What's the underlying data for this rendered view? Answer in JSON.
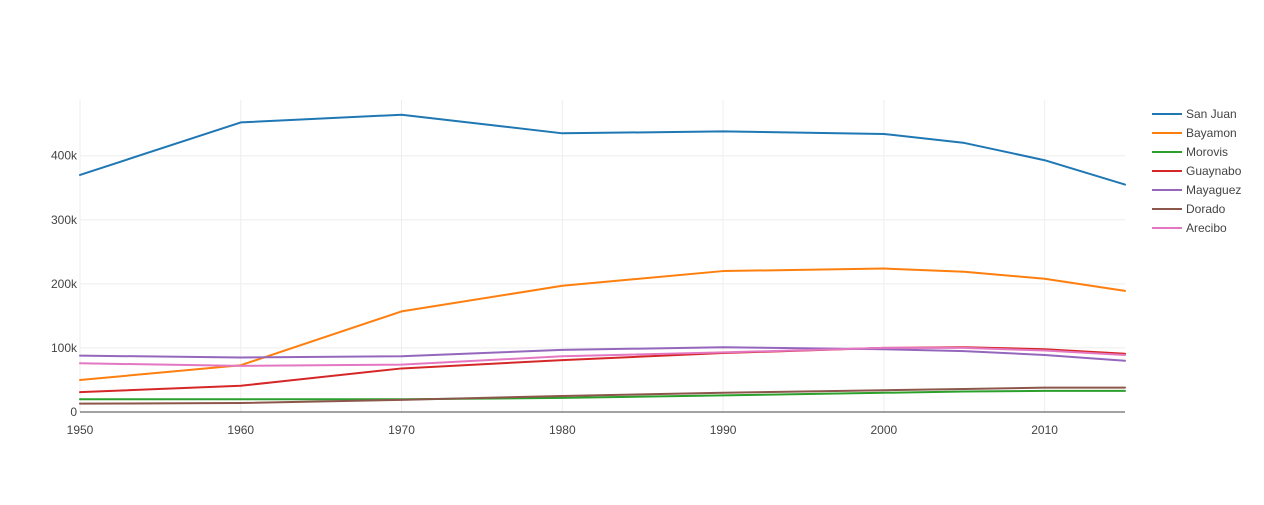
{
  "chart_data": {
    "type": "line",
    "x": [
      1950,
      1960,
      1970,
      1980,
      1990,
      2000,
      2005,
      2010,
      2015
    ],
    "xticks": [
      1950,
      1960,
      1970,
      1980,
      1990,
      2000,
      2010
    ],
    "yticks": [
      {
        "value": 0,
        "label": "0"
      },
      {
        "value": 100000,
        "label": "100k"
      },
      {
        "value": 200000,
        "label": "200k"
      },
      {
        "value": 300000,
        "label": "300k"
      },
      {
        "value": 400000,
        "label": "400k"
      }
    ],
    "xlim": [
      1950,
      2015
    ],
    "ylim": [
      0,
      487000
    ],
    "grid": true,
    "legend_position": "top-right",
    "series": [
      {
        "name": "San Juan",
        "color": "#1f77b4",
        "values": [
          370000,
          452000,
          464000,
          435000,
          438000,
          434000,
          420000,
          393000,
          355000
        ]
      },
      {
        "name": "Bayamon",
        "color": "#ff7f0e",
        "values": [
          50000,
          73000,
          157000,
          197000,
          220000,
          224000,
          219000,
          208000,
          189000
        ]
      },
      {
        "name": "Morovis",
        "color": "#2ca02c",
        "values": [
          20000,
          20000,
          20000,
          22000,
          26000,
          30000,
          32000,
          33000,
          33000
        ]
      },
      {
        "name": "Guaynabo",
        "color": "#d62728",
        "values": [
          31000,
          41000,
          68000,
          81000,
          92000,
          100000,
          101000,
          98000,
          91000
        ]
      },
      {
        "name": "Mayaguez",
        "color": "#9467bd",
        "values": [
          88000,
          85000,
          87000,
          97000,
          101000,
          98000,
          95000,
          89000,
          80000
        ]
      },
      {
        "name": "Dorado",
        "color": "#8c564b",
        "values": [
          13000,
          14000,
          19000,
          25000,
          30000,
          34000,
          36000,
          38000,
          38000
        ]
      },
      {
        "name": "Arecibo",
        "color": "#e377c2",
        "values": [
          76000,
          72000,
          74000,
          87000,
          93000,
          100000,
          100000,
          96000,
          89000
        ]
      }
    ]
  }
}
